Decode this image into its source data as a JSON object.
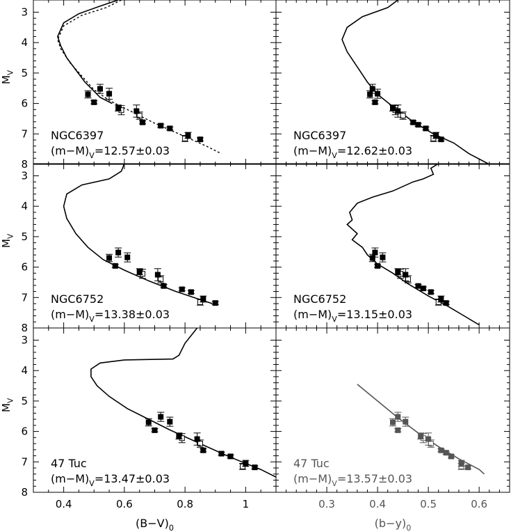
{
  "chart_data": [
    {
      "type": "scatter",
      "panel": "NGC6397-BV",
      "cluster_label": "NGC6397",
      "modulus_prefix": "(m−M)",
      "modulus_sub": "V",
      "modulus_value": "=12.57±0.03",
      "xlabel_main": "",
      "xlabel_sub": "",
      "ylabel_main": "M",
      "ylabel_sub": "V",
      "xlim": [
        0.3,
        1.1
      ],
      "ylim": [
        8,
        2.6
      ],
      "y_ticks": [
        "3",
        "4",
        "5",
        "6",
        "7",
        "8"
      ],
      "x_ticks": [],
      "filled_points": [
        {
          "x": 0.48,
          "y": 5.7,
          "err": 0.12
        },
        {
          "x": 0.5,
          "y": 5.96,
          "err": 0.05
        },
        {
          "x": 0.52,
          "y": 5.52,
          "err": 0.15
        },
        {
          "x": 0.55,
          "y": 5.68,
          "err": 0.18
        },
        {
          "x": 0.58,
          "y": 6.15,
          "err": 0.1
        },
        {
          "x": 0.64,
          "y": 6.25,
          "err": 0.2
        },
        {
          "x": 0.66,
          "y": 6.62,
          "err": 0.05
        },
        {
          "x": 0.72,
          "y": 6.73,
          "err": 0.05
        },
        {
          "x": 0.75,
          "y": 6.82,
          "err": 0.05
        },
        {
          "x": 0.81,
          "y": 7.05,
          "err": 0.1
        },
        {
          "x": 0.85,
          "y": 7.18,
          "err": 0.05
        }
      ],
      "open_points": [
        {
          "x": 0.59,
          "y": 6.22,
          "err": 0.15
        },
        {
          "x": 0.65,
          "y": 6.4,
          "err": 0.12
        },
        {
          "x": 0.8,
          "y": 7.15,
          "err": 0.1
        }
      ],
      "isochrone_solid": [
        [
          0.58,
          2.6
        ],
        [
          0.52,
          2.8
        ],
        [
          0.45,
          3.05
        ],
        [
          0.4,
          3.35
        ],
        [
          0.38,
          3.8
        ],
        [
          0.39,
          4.1
        ],
        [
          0.41,
          4.5
        ],
        [
          0.44,
          4.9
        ],
        [
          0.47,
          5.3
        ],
        [
          0.5,
          5.6
        ],
        [
          0.52,
          5.8
        ],
        [
          0.56,
          6.0
        ]
      ],
      "isochrone_dashed": [
        [
          0.59,
          2.6
        ],
        [
          0.54,
          2.85
        ],
        [
          0.46,
          3.1
        ],
        [
          0.4,
          3.45
        ],
        [
          0.38,
          3.9
        ],
        [
          0.39,
          4.2
        ],
        [
          0.42,
          4.65
        ],
        [
          0.46,
          5.1
        ],
        [
          0.5,
          5.55
        ],
        [
          0.55,
          5.9
        ],
        [
          0.62,
          6.25
        ],
        [
          0.7,
          6.65
        ],
        [
          0.78,
          7.0
        ],
        [
          0.87,
          7.4
        ],
        [
          0.92,
          7.65
        ]
      ]
    },
    {
      "type": "scatter",
      "panel": "NGC6397-by",
      "cluster_label": "NGC6397",
      "modulus_prefix": "(m−M)",
      "modulus_sub": "V",
      "modulus_value": "=12.62±0.03",
      "xlabel_main": "",
      "xlabel_sub": "",
      "ylabel_main": "",
      "ylabel_sub": "",
      "xlim": [
        0.2,
        0.66
      ],
      "ylim": [
        8,
        2.6
      ],
      "y_ticks": [],
      "x_ticks": [],
      "filled_points": [
        {
          "x": 0.385,
          "y": 5.7,
          "err": 0.12
        },
        {
          "x": 0.395,
          "y": 5.96,
          "err": 0.05
        },
        {
          "x": 0.39,
          "y": 5.52,
          "err": 0.15
        },
        {
          "x": 0.4,
          "y": 5.68,
          "err": 0.15
        },
        {
          "x": 0.43,
          "y": 6.15,
          "err": 0.1
        },
        {
          "x": 0.44,
          "y": 6.25,
          "err": 0.2
        },
        {
          "x": 0.47,
          "y": 6.62,
          "err": 0.05
        },
        {
          "x": 0.48,
          "y": 6.7,
          "err": 0.05
        },
        {
          "x": 0.495,
          "y": 6.82,
          "err": 0.05
        },
        {
          "x": 0.515,
          "y": 7.05,
          "err": 0.1
        },
        {
          "x": 0.525,
          "y": 7.18,
          "err": 0.05
        }
      ],
      "open_points": [
        {
          "x": 0.435,
          "y": 6.22,
          "err": 0.15
        },
        {
          "x": 0.45,
          "y": 6.4,
          "err": 0.12
        },
        {
          "x": 0.51,
          "y": 7.15,
          "err": 0.1
        }
      ],
      "isochrone_solid": [
        [
          0.44,
          2.6
        ],
        [
          0.42,
          2.85
        ],
        [
          0.37,
          3.15
        ],
        [
          0.34,
          3.5
        ],
        [
          0.33,
          3.9
        ],
        [
          0.34,
          4.3
        ],
        [
          0.36,
          4.8
        ],
        [
          0.38,
          5.3
        ],
        [
          0.4,
          5.7
        ],
        [
          0.43,
          6.1
        ],
        [
          0.47,
          6.6
        ],
        [
          0.51,
          7.0
        ],
        [
          0.55,
          7.3
        ],
        [
          0.58,
          7.65
        ],
        [
          0.62,
          8.0
        ]
      ],
      "isochrone_dashed": []
    },
    {
      "type": "scatter",
      "panel": "NGC6752-BV",
      "cluster_label": "NGC6752",
      "modulus_prefix": "(m−M)",
      "modulus_sub": "V",
      "modulus_value": "=13.38±0.03",
      "xlabel_main": "",
      "xlabel_sub": "",
      "ylabel_main": "M",
      "ylabel_sub": "V",
      "xlim": [
        0.3,
        1.1
      ],
      "ylim": [
        8,
        2.6
      ],
      "y_ticks": [
        "3",
        "4",
        "5",
        "6",
        "7",
        "8"
      ],
      "x_ticks": [],
      "filled_points": [
        {
          "x": 0.55,
          "y": 5.7,
          "err": 0.12
        },
        {
          "x": 0.57,
          "y": 5.96,
          "err": 0.05
        },
        {
          "x": 0.58,
          "y": 5.52,
          "err": 0.15
        },
        {
          "x": 0.61,
          "y": 5.68,
          "err": 0.15
        },
        {
          "x": 0.65,
          "y": 6.15,
          "err": 0.1
        },
        {
          "x": 0.71,
          "y": 6.25,
          "err": 0.2
        },
        {
          "x": 0.73,
          "y": 6.62,
          "err": 0.05
        },
        {
          "x": 0.79,
          "y": 6.73,
          "err": 0.05
        },
        {
          "x": 0.82,
          "y": 6.82,
          "err": 0.05
        },
        {
          "x": 0.86,
          "y": 7.05,
          "err": 0.1
        },
        {
          "x": 0.9,
          "y": 7.18,
          "err": 0.05
        }
      ],
      "open_points": [
        {
          "x": 0.66,
          "y": 6.22,
          "err": 0.15
        },
        {
          "x": 0.72,
          "y": 6.4,
          "err": 0.12
        },
        {
          "x": 0.85,
          "y": 7.15,
          "err": 0.1
        }
      ],
      "isochrone_solid": [
        [
          0.6,
          2.6
        ],
        [
          0.59,
          2.85
        ],
        [
          0.55,
          3.1
        ],
        [
          0.46,
          3.3
        ],
        [
          0.41,
          3.6
        ],
        [
          0.4,
          4.0
        ],
        [
          0.41,
          4.4
        ],
        [
          0.44,
          4.9
        ],
        [
          0.48,
          5.35
        ],
        [
          0.53,
          5.75
        ],
        [
          0.6,
          6.1
        ],
        [
          0.68,
          6.45
        ],
        [
          0.77,
          6.8
        ],
        [
          0.86,
          7.1
        ],
        [
          0.89,
          7.2
        ]
      ],
      "isochrone_dashed": []
    },
    {
      "type": "scatter",
      "panel": "NGC6752-by",
      "cluster_label": "NGC6752",
      "modulus_prefix": "(m−M)",
      "modulus_sub": "V",
      "modulus_value": "=13.15±0.03",
      "xlabel_main": "",
      "xlabel_sub": "",
      "ylabel_main": "",
      "ylabel_sub": "",
      "xlim": [
        0.2,
        0.66
      ],
      "ylim": [
        8,
        2.6
      ],
      "y_ticks": [],
      "x_ticks": [],
      "filled_points": [
        {
          "x": 0.39,
          "y": 5.7,
          "err": 0.12
        },
        {
          "x": 0.4,
          "y": 5.96,
          "err": 0.05
        },
        {
          "x": 0.395,
          "y": 5.52,
          "err": 0.15
        },
        {
          "x": 0.41,
          "y": 5.68,
          "err": 0.15
        },
        {
          "x": 0.44,
          "y": 6.15,
          "err": 0.1
        },
        {
          "x": 0.455,
          "y": 6.25,
          "err": 0.2
        },
        {
          "x": 0.48,
          "y": 6.62,
          "err": 0.05
        },
        {
          "x": 0.49,
          "y": 6.7,
          "err": 0.05
        },
        {
          "x": 0.505,
          "y": 6.82,
          "err": 0.05
        },
        {
          "x": 0.525,
          "y": 7.05,
          "err": 0.1
        },
        {
          "x": 0.535,
          "y": 7.18,
          "err": 0.05
        }
      ],
      "open_points": [
        {
          "x": 0.445,
          "y": 6.22,
          "err": 0.15
        },
        {
          "x": 0.46,
          "y": 6.4,
          "err": 0.12
        },
        {
          "x": 0.52,
          "y": 7.15,
          "err": 0.1
        }
      ],
      "isochrone_solid": [
        [
          0.52,
          2.6
        ],
        [
          0.505,
          2.75
        ],
        [
          0.51,
          2.95
        ],
        [
          0.49,
          3.1
        ],
        [
          0.47,
          3.2
        ],
        [
          0.43,
          3.5
        ],
        [
          0.39,
          3.7
        ],
        [
          0.36,
          3.9
        ],
        [
          0.345,
          4.2
        ],
        [
          0.35,
          4.45
        ],
        [
          0.34,
          4.6
        ],
        [
          0.36,
          4.9
        ],
        [
          0.35,
          5.1
        ],
        [
          0.37,
          5.35
        ],
        [
          0.38,
          5.6
        ],
        [
          0.4,
          5.9
        ],
        [
          0.43,
          6.2
        ],
        [
          0.46,
          6.55
        ],
        [
          0.5,
          6.95
        ],
        [
          0.54,
          7.3
        ],
        [
          0.57,
          7.6
        ],
        [
          0.6,
          7.9
        ]
      ],
      "isochrone_dashed": []
    },
    {
      "type": "scatter",
      "panel": "47Tuc-BV",
      "cluster_label": "47 Tuc",
      "modulus_prefix": "(m−M)",
      "modulus_sub": "V",
      "modulus_value": "=13.47±0.03",
      "xlabel_main": "(B−V)",
      "xlabel_sub": "0",
      "ylabel_main": "M",
      "ylabel_sub": "V",
      "xlim": [
        0.3,
        1.1
      ],
      "ylim": [
        8,
        2.6
      ],
      "y_ticks": [
        "3",
        "4",
        "5",
        "6",
        "7",
        "8"
      ],
      "x_ticks": [
        "0.4",
        "0.6",
        "0.8",
        "1"
      ],
      "x_tick_values": [
        0.4,
        0.6,
        0.8,
        1.0
      ],
      "filled_points": [
        {
          "x": 0.68,
          "y": 5.7,
          "err": 0.12
        },
        {
          "x": 0.7,
          "y": 5.96,
          "err": 0.05
        },
        {
          "x": 0.72,
          "y": 5.52,
          "err": 0.15
        },
        {
          "x": 0.75,
          "y": 5.68,
          "err": 0.15
        },
        {
          "x": 0.78,
          "y": 6.15,
          "err": 0.1
        },
        {
          "x": 0.84,
          "y": 6.25,
          "err": 0.2
        },
        {
          "x": 0.86,
          "y": 6.62,
          "err": 0.05
        },
        {
          "x": 0.92,
          "y": 6.73,
          "err": 0.05
        },
        {
          "x": 0.95,
          "y": 6.82,
          "err": 0.05
        },
        {
          "x": 1.0,
          "y": 7.05,
          "err": 0.1
        },
        {
          "x": 1.03,
          "y": 7.18,
          "err": 0.05
        }
      ],
      "open_points": [
        {
          "x": 0.79,
          "y": 6.22,
          "err": 0.15
        },
        {
          "x": 0.85,
          "y": 6.4,
          "err": 0.12
        },
        {
          "x": 0.99,
          "y": 7.15,
          "err": 0.1
        }
      ],
      "isochrone_solid": [
        [
          0.84,
          2.6
        ],
        [
          0.8,
          3.1
        ],
        [
          0.78,
          3.5
        ],
        [
          0.76,
          3.62
        ],
        [
          0.6,
          3.65
        ],
        [
          0.52,
          3.75
        ],
        [
          0.49,
          3.95
        ],
        [
          0.49,
          4.2
        ],
        [
          0.51,
          4.5
        ],
        [
          0.55,
          4.85
        ],
        [
          0.61,
          5.25
        ],
        [
          0.68,
          5.6
        ],
        [
          0.75,
          5.95
        ],
        [
          0.85,
          6.4
        ],
        [
          0.95,
          6.85
        ],
        [
          1.05,
          7.25
        ],
        [
          1.1,
          7.5
        ]
      ],
      "isochrone_dashed": []
    },
    {
      "type": "scatter",
      "panel": "47Tuc-by",
      "cluster_label": "47 Tuc",
      "modulus_prefix": "(m−M)",
      "modulus_sub": "V",
      "modulus_value": "=13.57±0.03",
      "xlabel_main": "(b−y)",
      "xlabel_sub": "0",
      "ylabel_main": "",
      "ylabel_sub": "",
      "xlim": [
        0.2,
        0.66
      ],
      "ylim": [
        8,
        2.6
      ],
      "y_ticks": [],
      "x_ticks": [
        "0.3",
        "0.4",
        "0.5",
        "0.6"
      ],
      "x_tick_values": [
        0.3,
        0.4,
        0.5,
        0.6
      ],
      "muted": true,
      "filled_points": [
        {
          "x": 0.43,
          "y": 5.7,
          "err": 0.12
        },
        {
          "x": 0.44,
          "y": 5.96,
          "err": 0.05
        },
        {
          "x": 0.44,
          "y": 5.52,
          "err": 0.15
        },
        {
          "x": 0.455,
          "y": 5.68,
          "err": 0.15
        },
        {
          "x": 0.485,
          "y": 6.15,
          "err": 0.1
        },
        {
          "x": 0.5,
          "y": 6.25,
          "err": 0.2
        },
        {
          "x": 0.525,
          "y": 6.62,
          "err": 0.05
        },
        {
          "x": 0.535,
          "y": 6.7,
          "err": 0.05
        },
        {
          "x": 0.545,
          "y": 6.82,
          "err": 0.05
        },
        {
          "x": 0.565,
          "y": 7.05,
          "err": 0.1
        },
        {
          "x": 0.578,
          "y": 7.18,
          "err": 0.05
        }
      ],
      "open_points": [
        {
          "x": 0.49,
          "y": 6.22,
          "err": 0.15
        },
        {
          "x": 0.505,
          "y": 6.4,
          "err": 0.12
        },
        {
          "x": 0.565,
          "y": 7.15,
          "err": 0.1
        }
      ],
      "isochrone_solid": [
        [
          0.36,
          4.45
        ],
        [
          0.4,
          5.0
        ],
        [
          0.44,
          5.55
        ],
        [
          0.48,
          6.05
        ],
        [
          0.52,
          6.5
        ],
        [
          0.56,
          6.9
        ],
        [
          0.6,
          7.25
        ],
        [
          0.61,
          7.4
        ]
      ],
      "isochrone_dashed": []
    }
  ]
}
